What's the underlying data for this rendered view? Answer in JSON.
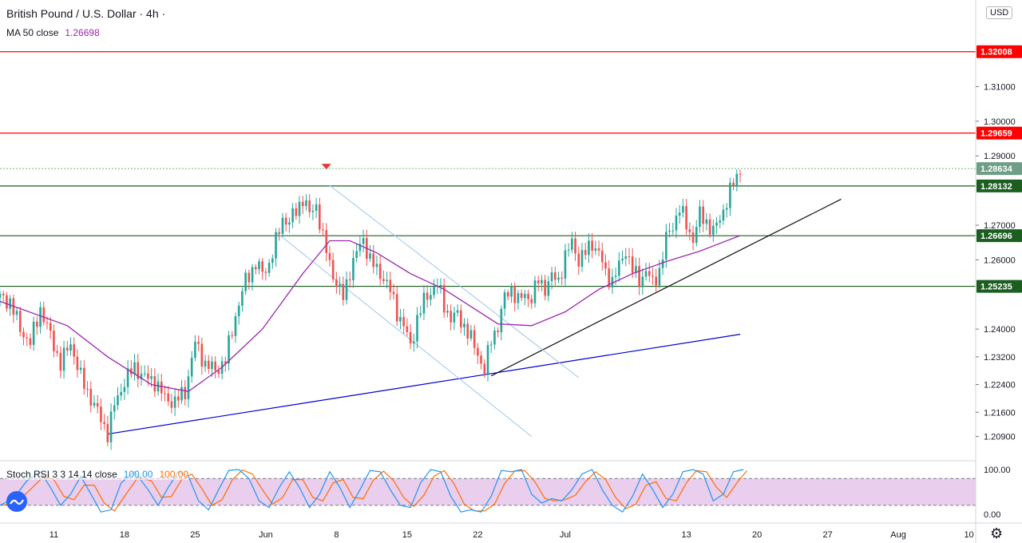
{
  "header": {
    "title": "British Pound / U.S. Dollar · 4h ·",
    "ma_label": "MA 50 close",
    "ma_value": "1.26698"
  },
  "stoch": {
    "label": "Stoch RSI 3 3 14 14 close",
    "k_value": "100.00",
    "d_value": "100.00",
    "ticks": [
      "100.00",
      "0.00"
    ]
  },
  "currency": "USD",
  "colors": {
    "up": "#26a69a",
    "down": "#ef5350",
    "ma": "#9c27b0",
    "resistance": "#ff0000",
    "support": "#1b5e20",
    "trend_blue": "#0000cc",
    "channel": "#9ec5ef",
    "stoch_k": "#2196f3",
    "stoch_d": "#ff6d00",
    "stoch_band": "#e1bee7"
  },
  "chart_data": {
    "type": "candlestick",
    "title": "British Pound / U.S. Dollar · 4h",
    "y_ticks": [
      "1.31000",
      "1.30000",
      "1.29000",
      "1.27000",
      "1.26000",
      "1.24000",
      "1.23200",
      "1.22400",
      "1.21600",
      "1.20900"
    ],
    "x_ticks": [
      "11",
      "18",
      "25",
      "Jun",
      "8",
      "15",
      "22",
      "Jul",
      "13",
      "20",
      "27",
      "Aug",
      "10"
    ],
    "ylim": [
      1.202,
      1.335
    ],
    "price_levels": [
      {
        "label": "1.32008",
        "value": 1.32008,
        "kind": "resistance"
      },
      {
        "label": "1.29659",
        "value": 1.29659,
        "kind": "resistance"
      },
      {
        "label": "1.28634",
        "value": 1.28634,
        "kind": "current"
      },
      {
        "label": "1.28132",
        "value": 1.28132,
        "kind": "support"
      },
      {
        "label": "1.26696",
        "value": 1.26696,
        "kind": "support"
      },
      {
        "label": "1.25235",
        "value": 1.25235,
        "kind": "support"
      }
    ],
    "close_path": [
      [
        0,
        1.249
      ],
      [
        3,
        1.248
      ],
      [
        6,
        1.24
      ],
      [
        9,
        1.236
      ],
      [
        12,
        1.246
      ],
      [
        15,
        1.238
      ],
      [
        18,
        1.23
      ],
      [
        21,
        1.236
      ],
      [
        24,
        1.226
      ],
      [
        27,
        1.22
      ],
      [
        30,
        1.214
      ],
      [
        32,
        1.21
      ],
      [
        34,
        1.218
      ],
      [
        37,
        1.225
      ],
      [
        40,
        1.229
      ],
      [
        43,
        1.226
      ],
      [
        46,
        1.225
      ],
      [
        49,
        1.22
      ],
      [
        52,
        1.219
      ],
      [
        55,
        1.222
      ],
      [
        58,
        1.236
      ],
      [
        61,
        1.23
      ],
      [
        64,
        1.228
      ],
      [
        67,
        1.231
      ],
      [
        70,
        1.244
      ],
      [
        73,
        1.254
      ],
      [
        76,
        1.259
      ],
      [
        78,
        1.256
      ],
      [
        80,
        1.259
      ],
      [
        82,
        1.265
      ],
      [
        84,
        1.272
      ],
      [
        86,
        1.271
      ],
      [
        88,
        1.274
      ],
      [
        90,
        1.278
      ],
      [
        92,
        1.273
      ],
      [
        94,
        1.276
      ],
      [
        96,
        1.266
      ],
      [
        98,
        1.259
      ],
      [
        100,
        1.253
      ],
      [
        102,
        1.249
      ],
      [
        104,
        1.257
      ],
      [
        106,
        1.262
      ],
      [
        108,
        1.266
      ],
      [
        110,
        1.26
      ],
      [
        112,
        1.257
      ],
      [
        114,
        1.255
      ],
      [
        116,
        1.251
      ],
      [
        118,
        1.245
      ],
      [
        120,
        1.241
      ],
      [
        122,
        1.235
      ],
      [
        124,
        1.243
      ],
      [
        126,
        1.248
      ],
      [
        128,
        1.251
      ],
      [
        130,
        1.253
      ],
      [
        132,
        1.247
      ],
      [
        134,
        1.243
      ],
      [
        136,
        1.244
      ],
      [
        138,
        1.241
      ],
      [
        140,
        1.237
      ],
      [
        142,
        1.233
      ],
      [
        144,
        1.228
      ],
      [
        146,
        1.237
      ],
      [
        148,
        1.241
      ],
      [
        150,
        1.249
      ],
      [
        152,
        1.252
      ],
      [
        154,
        1.248
      ],
      [
        156,
        1.25
      ],
      [
        158,
        1.249
      ],
      [
        160,
        1.254
      ],
      [
        162,
        1.252
      ],
      [
        164,
        1.255
      ],
      [
        166,
        1.254
      ],
      [
        168,
        1.261
      ],
      [
        170,
        1.265
      ],
      [
        172,
        1.26
      ],
      [
        174,
        1.262
      ],
      [
        176,
        1.265
      ],
      [
        178,
        1.262
      ],
      [
        180,
        1.256
      ],
      [
        182,
        1.254
      ],
      [
        184,
        1.258
      ],
      [
        186,
        1.263
      ],
      [
        188,
        1.257
      ],
      [
        190,
        1.254
      ],
      [
        192,
        1.257
      ],
      [
        194,
        1.253
      ],
      [
        196,
        1.257
      ],
      [
        198,
        1.266
      ],
      [
        200,
        1.27
      ],
      [
        202,
        1.275
      ],
      [
        204,
        1.27
      ],
      [
        206,
        1.266
      ],
      [
        208,
        1.273
      ],
      [
        210,
        1.271
      ],
      [
        212,
        1.268
      ],
      [
        214,
        1.272
      ],
      [
        216,
        1.277
      ],
      [
        218,
        1.282
      ],
      [
        220,
        1.2863
      ]
    ],
    "ma50_path": [
      [
        0,
        1.248
      ],
      [
        20,
        1.241
      ],
      [
        32,
        1.232
      ],
      [
        45,
        1.224
      ],
      [
        56,
        1.222
      ],
      [
        66,
        1.229
      ],
      [
        78,
        1.24
      ],
      [
        90,
        1.256
      ],
      [
        98,
        1.2655
      ],
      [
        104,
        1.2655
      ],
      [
        112,
        1.262
      ],
      [
        122,
        1.256
      ],
      [
        132,
        1.2515
      ],
      [
        140,
        1.2465
      ],
      [
        148,
        1.2415
      ],
      [
        158,
        1.241
      ],
      [
        168,
        1.245
      ],
      [
        178,
        1.2515
      ],
      [
        188,
        1.256
      ],
      [
        198,
        1.2595
      ],
      [
        208,
        1.2625
      ],
      [
        220,
        1.267
      ]
    ],
    "trendlines": [
      {
        "kind": "trend_blue",
        "points": [
          [
            32,
            1.2097
          ],
          [
            220,
            1.2385
          ]
        ]
      },
      {
        "kind": "trend_black",
        "points": [
          [
            146,
            1.2265
          ],
          [
            250,
            1.2775
          ]
        ]
      },
      {
        "kind": "channel",
        "points": [
          [
            98,
            1.2815
          ],
          [
            172,
            1.226
          ]
        ]
      },
      {
        "kind": "channel",
        "points": [
          [
            82,
            1.268
          ],
          [
            158,
            1.209
          ]
        ]
      }
    ],
    "stoch_rsi": {
      "ylim": [
        0,
        100
      ],
      "band": [
        20,
        80
      ],
      "k_path": [
        [
          0,
          20
        ],
        [
          4,
          35
        ],
        [
          8,
          75
        ],
        [
          12,
          95
        ],
        [
          15,
          60
        ],
        [
          18,
          20
        ],
        [
          21,
          45
        ],
        [
          24,
          85
        ],
        [
          27,
          45
        ],
        [
          30,
          5
        ],
        [
          33,
          10
        ],
        [
          36,
          70
        ],
        [
          40,
          95
        ],
        [
          44,
          55
        ],
        [
          47,
          20
        ],
        [
          50,
          60
        ],
        [
          53,
          95
        ],
        [
          56,
          85
        ],
        [
          59,
          30
        ],
        [
          62,
          10
        ],
        [
          65,
          55
        ],
        [
          68,
          98
        ],
        [
          71,
          100
        ],
        [
          74,
          80
        ],
        [
          77,
          30
        ],
        [
          80,
          15
        ],
        [
          83,
          60
        ],
        [
          86,
          95
        ],
        [
          89,
          60
        ],
        [
          92,
          15
        ],
        [
          95,
          45
        ],
        [
          98,
          95
        ],
        [
          101,
          60
        ],
        [
          104,
          15
        ],
        [
          107,
          55
        ],
        [
          110,
          98
        ],
        [
          113,
          95
        ],
        [
          116,
          55
        ],
        [
          119,
          20
        ],
        [
          122,
          15
        ],
        [
          125,
          70
        ],
        [
          128,
          100
        ],
        [
          131,
          95
        ],
        [
          134,
          40
        ],
        [
          137,
          5
        ],
        [
          140,
          10
        ],
        [
          143,
          5
        ],
        [
          146,
          40
        ],
        [
          149,
          98
        ],
        [
          152,
          95
        ],
        [
          155,
          100
        ],
        [
          158,
          45
        ],
        [
          161,
          25
        ],
        [
          164,
          35
        ],
        [
          167,
          30
        ],
        [
          170,
          55
        ],
        [
          173,
          90
        ],
        [
          176,
          100
        ],
        [
          179,
          55
        ],
        [
          182,
          20
        ],
        [
          185,
          5
        ],
        [
          188,
          40
        ],
        [
          191,
          90
        ],
        [
          194,
          55
        ],
        [
          197,
          15
        ],
        [
          200,
          45
        ],
        [
          203,
          95
        ],
        [
          206,
          100
        ],
        [
          209,
          90
        ],
        [
          212,
          30
        ],
        [
          215,
          45
        ],
        [
          218,
          95
        ],
        [
          221,
          100
        ]
      ]
    }
  }
}
